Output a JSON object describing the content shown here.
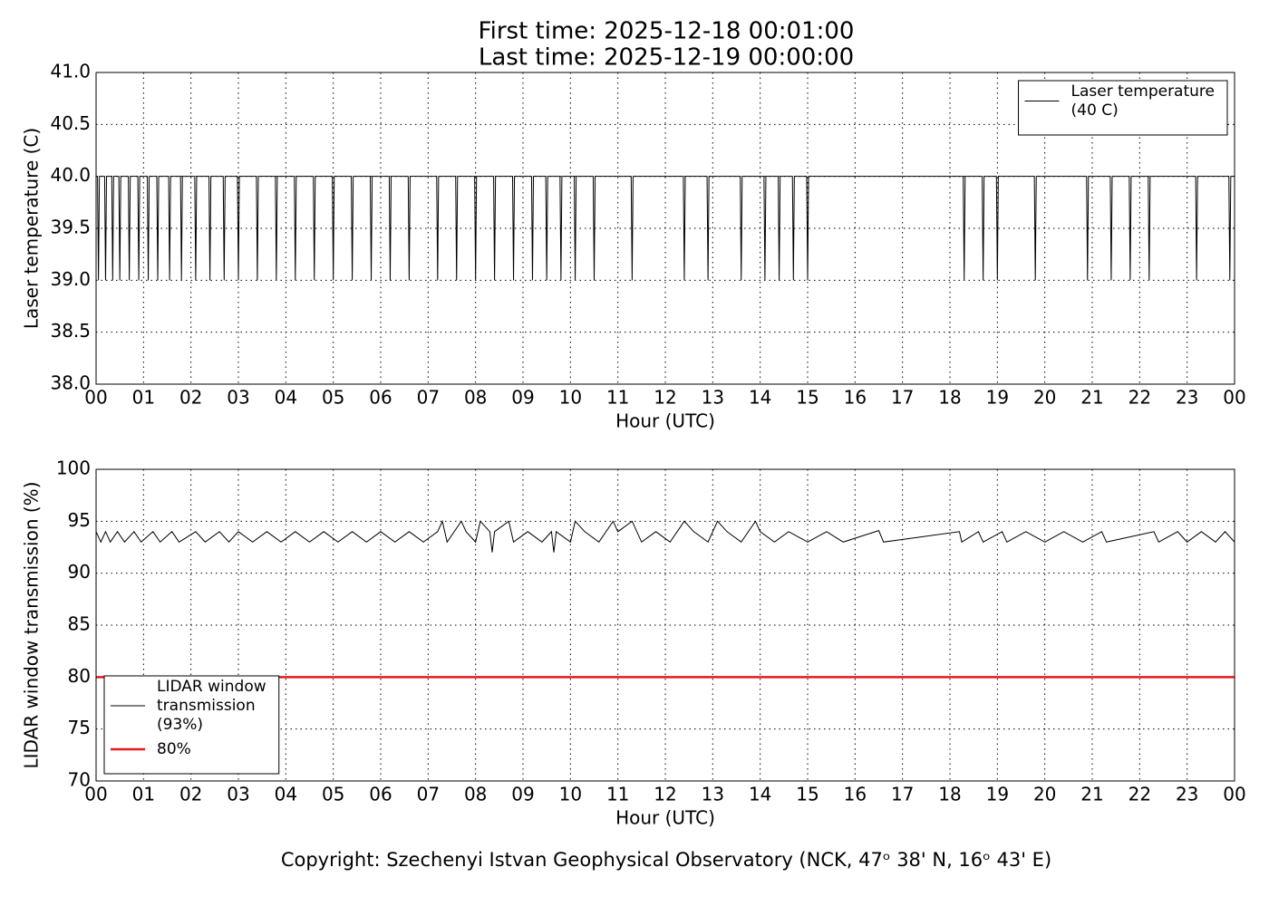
{
  "chart_data": [
    {
      "type": "line",
      "title": "First time: 2025-12-18 00:01:00",
      "subtitle": "Last time: 2025-12-19 00:00:00",
      "x_label": "Hour (UTC)",
      "y_label": "Laser temperature (C)",
      "xlim": [
        0,
        24
      ],
      "xticks": [
        {
          "value": 0,
          "label": "00"
        },
        {
          "value": 1,
          "label": "01"
        },
        {
          "value": 2,
          "label": "02"
        },
        {
          "value": 3,
          "label": "03"
        },
        {
          "value": 4,
          "label": "04"
        },
        {
          "value": 5,
          "label": "05"
        },
        {
          "value": 6,
          "label": "06"
        },
        {
          "value": 7,
          "label": "07"
        },
        {
          "value": 8,
          "label": "08"
        },
        {
          "value": 9,
          "label": "09"
        },
        {
          "value": 10,
          "label": "10"
        },
        {
          "value": 11,
          "label": "11"
        },
        {
          "value": 12,
          "label": "12"
        },
        {
          "value": 13,
          "label": "13"
        },
        {
          "value": 14,
          "label": "14"
        },
        {
          "value": 15,
          "label": "15"
        },
        {
          "value": 16,
          "label": "16"
        },
        {
          "value": 17,
          "label": "17"
        },
        {
          "value": 18,
          "label": "18"
        },
        {
          "value": 19,
          "label": "19"
        },
        {
          "value": 20,
          "label": "20"
        },
        {
          "value": 21,
          "label": "21"
        },
        {
          "value": 22,
          "label": "22"
        },
        {
          "value": 23,
          "label": "23"
        },
        {
          "value": 24,
          "label": "00"
        }
      ],
      "ylim": [
        38,
        41
      ],
      "yticks": [
        {
          "value": 38,
          "label": "38.0"
        },
        {
          "value": 38.5,
          "label": "38.5"
        },
        {
          "value": 39,
          "label": "39.0"
        },
        {
          "value": 39.5,
          "label": "39.5"
        },
        {
          "value": 40,
          "label": "40.0"
        },
        {
          "value": 40.5,
          "label": "40.5"
        },
        {
          "value": 41,
          "label": "41.0"
        }
      ],
      "grid": true,
      "legend": "upper right",
      "series": [
        {
          "name": "Laser temperature\n(40 C)",
          "color": "#000000",
          "line_width": 1,
          "x": [
            0,
            0.03,
            0.05,
            0.07,
            0.18,
            0.2,
            0.22,
            0.33,
            0.35,
            0.37,
            0.48,
            0.5,
            0.52,
            0.68,
            0.7,
            0.72,
            0.88,
            0.9,
            0.92,
            1.08,
            1.1,
            1.12,
            1.28,
            1.3,
            1.32,
            1.53,
            1.55,
            1.57,
            1.78,
            1.8,
            1.82,
            2.08,
            2.1,
            2.12,
            2.38,
            2.4,
            2.42,
            2.68,
            2.7,
            2.72,
            2.98,
            3.0,
            3.02,
            3.38,
            3.4,
            3.42,
            3.78,
            3.8,
            3.82,
            4.18,
            4.2,
            4.22,
            4.58,
            4.6,
            4.62,
            4.98,
            5.0,
            5.02,
            5.38,
            5.4,
            5.42,
            5.78,
            5.8,
            5.82,
            6.18,
            6.2,
            6.22,
            6.58,
            6.6,
            6.62,
            7.18,
            7.2,
            7.22,
            7.58,
            7.6,
            7.62,
            7.98,
            8.0,
            8.02,
            8.38,
            8.4,
            8.42,
            8.78,
            8.8,
            8.82,
            9.18,
            9.2,
            9.22,
            9.48,
            9.5,
            9.52,
            9.78,
            9.8,
            9.82,
            10.08,
            10.1,
            10.12,
            10.48,
            10.5,
            10.52,
            11.28,
            11.3,
            11.32,
            12.38,
            12.4,
            12.42,
            12.88,
            12.9,
            12.92,
            13.58,
            13.6,
            13.62,
            14.08,
            14.1,
            14.12,
            14.38,
            14.4,
            14.42,
            14.68,
            14.7,
            14.72,
            14.98,
            15.0,
            15.02,
            18.28,
            18.3,
            18.32,
            18.68,
            18.7,
            18.72,
            18.98,
            19.0,
            19.02,
            19.78,
            19.8,
            19.82,
            20.88,
            20.9,
            20.92,
            21.38,
            21.4,
            21.42,
            21.78,
            21.8,
            21.82,
            22.18,
            22.2,
            22.22,
            23.18,
            23.2,
            23.22,
            23.88,
            23.9,
            23.92,
            24
          ],
          "values": [
            40,
            40,
            39,
            40,
            40,
            39,
            40,
            40,
            39,
            40,
            40,
            39,
            40,
            40,
            39,
            40,
            40,
            39,
            40,
            40,
            39,
            40,
            40,
            39,
            40,
            40,
            39,
            40,
            40,
            39,
            40,
            40,
            39,
            40,
            40,
            39,
            40,
            40,
            39,
            40,
            40,
            39,
            40,
            40,
            39,
            40,
            40,
            39,
            40,
            40,
            39,
            40,
            40,
            39,
            40,
            40,
            39,
            40,
            40,
            39,
            40,
            40,
            39,
            40,
            40,
            39,
            40,
            40,
            39,
            40,
            40,
            39,
            40,
            40,
            39,
            40,
            40,
            39,
            40,
            40,
            39,
            40,
            40,
            39,
            40,
            40,
            39,
            40,
            40,
            39,
            40,
            40,
            39,
            40,
            40,
            39,
            40,
            40,
            39,
            40,
            40,
            39,
            40,
            40,
            39,
            40,
            40,
            39,
            40,
            40,
            39,
            40,
            40,
            39,
            40,
            40,
            39,
            40,
            40,
            39,
            40,
            40,
            39,
            40,
            40,
            39,
            40,
            40,
            39,
            40,
            40,
            39,
            40,
            40,
            39,
            40,
            40,
            39,
            40,
            40,
            39,
            40,
            40,
            39,
            40,
            40,
            39,
            40,
            40,
            39,
            40,
            40,
            39,
            40,
            40
          ]
        }
      ]
    },
    {
      "type": "line",
      "x_label": "Hour (UTC)",
      "y_label": "LIDAR window transmission (%)",
      "xlim": [
        0,
        24
      ],
      "xticks": [
        {
          "value": 0,
          "label": "00"
        },
        {
          "value": 1,
          "label": "01"
        },
        {
          "value": 2,
          "label": "02"
        },
        {
          "value": 3,
          "label": "03"
        },
        {
          "value": 4,
          "label": "04"
        },
        {
          "value": 5,
          "label": "05"
        },
        {
          "value": 6,
          "label": "06"
        },
        {
          "value": 7,
          "label": "07"
        },
        {
          "value": 8,
          "label": "08"
        },
        {
          "value": 9,
          "label": "09"
        },
        {
          "value": 10,
          "label": "10"
        },
        {
          "value": 11,
          "label": "11"
        },
        {
          "value": 12,
          "label": "12"
        },
        {
          "value": 13,
          "label": "13"
        },
        {
          "value": 14,
          "label": "14"
        },
        {
          "value": 15,
          "label": "15"
        },
        {
          "value": 16,
          "label": "16"
        },
        {
          "value": 17,
          "label": "17"
        },
        {
          "value": 18,
          "label": "18"
        },
        {
          "value": 19,
          "label": "19"
        },
        {
          "value": 20,
          "label": "20"
        },
        {
          "value": 21,
          "label": "21"
        },
        {
          "value": 22,
          "label": "22"
        },
        {
          "value": 23,
          "label": "23"
        },
        {
          "value": 24,
          "label": "00"
        }
      ],
      "ylim": [
        70,
        100
      ],
      "yticks": [
        70,
        75,
        80,
        85,
        90,
        95,
        100
      ],
      "grid": true,
      "legend": "lower left",
      "series": [
        {
          "name": "LIDAR window\ntransmission\n(93%)",
          "color": "#000000",
          "line_width": 1,
          "x": [
            0,
            0.1,
            0.2,
            0.3,
            0.45,
            0.6,
            0.8,
            0.95,
            1.2,
            1.35,
            1.6,
            1.75,
            2.1,
            2.3,
            2.6,
            2.8,
            3.0,
            3.3,
            3.6,
            3.9,
            4.2,
            4.5,
            4.8,
            5.1,
            5.4,
            5.7,
            6.0,
            6.3,
            6.6,
            6.9,
            7.2,
            7.3,
            7.4,
            7.7,
            7.8,
            8.0,
            8.1,
            8.3,
            8.35,
            8.4,
            8.7,
            8.8,
            9.1,
            9.4,
            9.6,
            9.65,
            9.7,
            10.0,
            10.1,
            10.3,
            10.6,
            10.9,
            11.0,
            11.3,
            11.5,
            11.8,
            12.1,
            12.4,
            12.6,
            12.9,
            13.1,
            13.3,
            13.6,
            13.9,
            14.0,
            14.3,
            14.6,
            15.0,
            15.4,
            15.75,
            16.5,
            16.6,
            18.2,
            18.25,
            18.6,
            18.7,
            19.1,
            19.2,
            19.6,
            20.0,
            20.4,
            20.8,
            21.2,
            21.3,
            22.3,
            22.4,
            22.8,
            23.0,
            23.3,
            23.6,
            23.8,
            24
          ],
          "values": [
            94,
            93,
            94,
            93,
            94,
            93,
            94,
            93,
            94,
            93,
            94,
            93,
            94,
            93,
            94,
            93,
            94,
            93,
            94,
            93,
            94,
            93,
            94,
            93,
            94,
            93,
            94,
            93,
            94,
            93,
            94,
            95,
            93,
            95,
            94,
            93,
            95,
            94,
            92,
            94,
            95,
            93,
            94,
            93,
            94,
            92,
            94,
            93,
            95,
            94,
            93,
            95,
            94,
            95,
            93,
            94,
            93,
            95,
            94,
            93,
            95,
            94,
            93,
            95,
            94,
            93,
            94,
            93,
            94,
            93,
            94.1,
            93,
            94,
            93,
            94,
            93,
            94,
            93,
            94,
            93,
            94,
            93,
            94,
            93,
            94,
            93,
            94,
            93,
            94,
            93,
            94,
            93
          ]
        },
        {
          "name": "80%",
          "color": "#e41a1c",
          "line_width": 2.5,
          "x": [
            0,
            24
          ],
          "values": [
            80,
            80
          ]
        }
      ]
    }
  ],
  "copyright": "Copyright: Szechenyi Istvan Geophysical Observatory (NCK, 47ᵒ  38' N, 16ᵒ  43' E)"
}
